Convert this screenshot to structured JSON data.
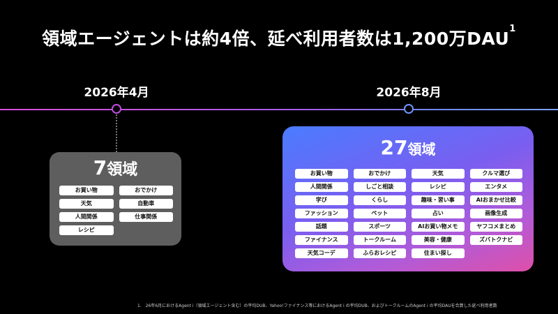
{
  "title": {
    "text": "領域エージェントは約4倍、延べ利用者数は1,200万DAU",
    "sup": "1"
  },
  "timeline": {
    "date_before": "2026年4月",
    "date_after": "2026年8月"
  },
  "before": {
    "count": "7",
    "unit": "領域",
    "items": [
      "お買い物",
      "おでかけ",
      "天気",
      "自動車",
      "人間関係",
      "仕事関係",
      "レシピ"
    ]
  },
  "after": {
    "count": "27",
    "unit": "領域",
    "columns": [
      [
        "お買い物",
        "人間関係",
        "学び",
        "ファッション",
        "話題",
        "ファイナンス",
        "天気コーデ"
      ],
      [
        "おでかけ",
        "しごと相談",
        "くらし",
        "ペット",
        "スポーツ",
        "トークルーム",
        "ふらおレシピ"
      ],
      [
        "天気",
        "レシピ",
        "趣味・習い事",
        "占い",
        "AIお買い物メモ",
        "美容・健康",
        "住まい探し"
      ],
      [
        "クルマ選び",
        "エンタメ",
        "AIおまかせ比較",
        "画像生成",
        "ヤフコメまとめ",
        "ズバトクナビ"
      ]
    ]
  },
  "footnote": "1.　26年6月におけるAgent i（領域エージェント含む）の平均DUB、Yahoo!ファイナンス等におけるAgent i の平均DUB、およびトークルームのAgent i の平均DAUを合算した延べ利用者数"
}
